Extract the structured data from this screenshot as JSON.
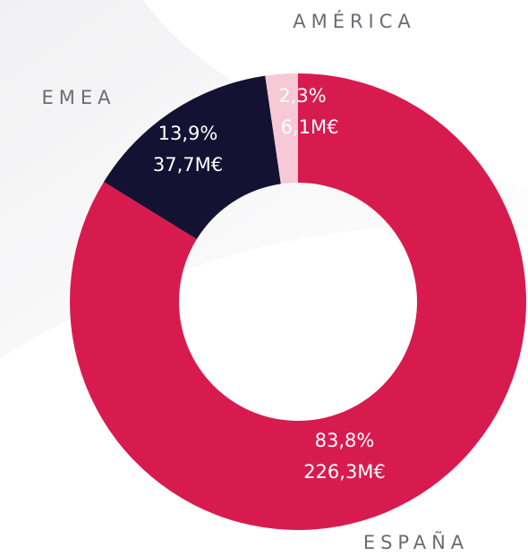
{
  "chart_data": {
    "type": "donut",
    "categories": [
      "ESPAÑA",
      "EMEA",
      "AMÉRICA"
    ],
    "values": [
      83.8,
      13.9,
      2.3
    ],
    "value_labels": [
      "83,8%",
      "13,9%",
      "2,3%"
    ],
    "amounts": [
      226.3,
      37.7,
      6.1
    ],
    "amount_labels": [
      "226,3M€",
      "37,7M€",
      "6,1M€"
    ],
    "colors": [
      "#d81b4f",
      "#141233",
      "#f7c9d6"
    ]
  }
}
